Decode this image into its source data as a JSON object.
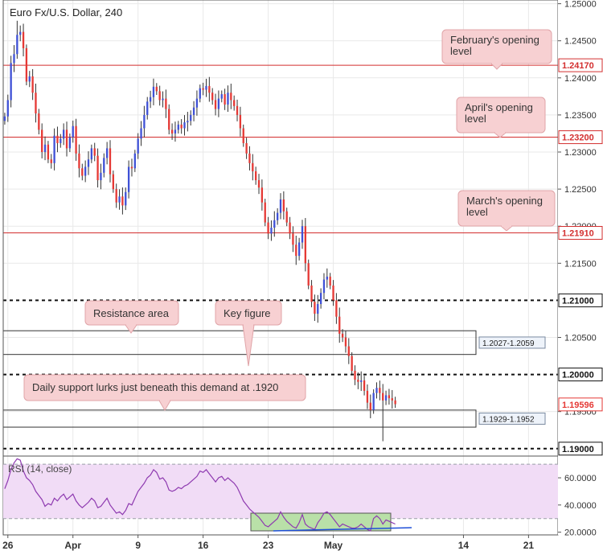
{
  "chart_data": {
    "type": "candlestick",
    "title": "Euro Fx/U.S. Dollar, 240",
    "price_axis": {
      "range": [
        1.189,
        1.2505
      ],
      "ticks": [
        "1.25000",
        "1.24500",
        "1.24000",
        "1.23500",
        "1.23000",
        "1.22500",
        "1.22000",
        "1.21500",
        "1.20500",
        "1.19500"
      ]
    },
    "time_axis": {
      "ticks": [
        {
          "label": "26",
          "bar": 1
        },
        {
          "label": "Apr",
          "bar": 22
        },
        {
          "label": "9",
          "bar": 43
        },
        {
          "label": "16",
          "bar": 64
        },
        {
          "label": "23",
          "bar": 85
        },
        {
          "label": "May",
          "bar": 106
        },
        {
          "label": "14",
          "bar": 148
        },
        {
          "label": "21",
          "bar": 169
        }
      ],
      "total_bars": 179
    },
    "closes": [
      1.2348,
      1.237,
      1.242,
      1.2432,
      1.2458,
      1.2462,
      1.244,
      1.2395,
      1.2402,
      1.238,
      1.2352,
      1.233,
      1.23,
      1.231,
      1.229,
      1.2285,
      1.2322,
      1.2312,
      1.2318,
      1.233,
      1.2305,
      1.232,
      1.2335,
      1.2298,
      1.2278,
      1.2268,
      1.228,
      1.229,
      1.2305,
      1.2295,
      1.2262,
      1.2272,
      1.2292,
      1.2305,
      1.227,
      1.225,
      1.2232,
      1.224,
      1.2228,
      1.2246,
      1.228,
      1.2278,
      1.2298,
      1.2318,
      1.2332,
      1.235,
      1.2368,
      1.2374,
      1.2388,
      1.2382,
      1.237,
      1.2372,
      1.2358,
      1.233,
      1.2325,
      1.233,
      1.2337,
      1.2332,
      1.234,
      1.2342,
      1.235,
      1.236,
      1.2372,
      1.2386,
      1.2384,
      1.2389,
      1.238,
      1.237,
      1.2358,
      1.2372,
      1.2378,
      1.2364,
      1.238,
      1.237,
      1.2362,
      1.235,
      1.2332,
      1.2312,
      1.2298,
      1.2285,
      1.2274,
      1.2262,
      1.2252,
      1.2232,
      1.2205,
      1.219,
      1.2198,
      1.2208,
      1.2218,
      1.2236,
      1.222,
      1.2205,
      1.219,
      1.2175,
      1.216,
      1.2178,
      1.22,
      1.215,
      1.212,
      1.2098,
      1.2082,
      1.2095,
      1.211,
      1.2128,
      1.2132,
      1.212,
      1.21,
      1.2078,
      1.2055,
      1.205,
      1.2038,
      1.2025,
      1.2005,
      1.1993,
      1.199,
      1.1992,
      1.1978,
      1.1962,
      1.1952,
      1.1975,
      1.1982,
      1.1975,
      1.1965,
      1.1972,
      1.1968,
      1.1965,
      1.196
    ],
    "horizontal_levels": [
      {
        "price": 1.2417,
        "label": "1.24170",
        "style": "solid-red"
      },
      {
        "price": 1.232,
        "label": "1.23200",
        "style": "solid-red"
      },
      {
        "price": 1.2191,
        "label": "1.21910",
        "style": "solid-red"
      },
      {
        "price": 1.21,
        "label": "1.21000",
        "style": "dashed-black"
      },
      {
        "price": 1.2,
        "label": "1.20000",
        "style": "dashed-black"
      },
      {
        "price": 1.19,
        "label": "1.19000",
        "style": "dashed-black"
      }
    ],
    "current_price": {
      "price": 1.19596,
      "label": "1.19596",
      "color": "#e53935"
    },
    "zones": [
      {
        "top": 1.2059,
        "bottom": 1.2027,
        "label": "1.2027-1.2059"
      },
      {
        "top": 1.1952,
        "bottom": 1.1929,
        "label": "1.1929-1.1952"
      }
    ],
    "annotations": [
      {
        "text": "February's opening level",
        "target": "1.24170 level"
      },
      {
        "text": "April's opening level",
        "target": "1.23200 level"
      },
      {
        "text": "March's opening level",
        "target": "1.21910 level"
      },
      {
        "text": "Resistance area",
        "target": "1.2027-1.2059 zone"
      },
      {
        "text": "Key figure",
        "target": "1.20000 level"
      },
      {
        "text": "Daily support lurks just beneath this demand at .1920",
        "target": "1.1929-1.1952 zone"
      }
    ],
    "rsi": {
      "title": "RSI (14, close)",
      "range": [
        18,
        76
      ],
      "ticks": [
        "60.0000",
        "40.0000",
        "20.0000"
      ],
      "overbought": 70,
      "oversold": 30,
      "values": [
        52,
        58,
        66,
        71,
        74,
        73,
        65,
        60,
        58,
        55,
        50,
        47,
        44,
        39,
        41,
        40,
        45,
        43,
        46,
        48,
        44,
        46,
        48,
        43,
        40,
        38,
        40,
        42,
        45,
        43,
        38,
        39,
        42,
        45,
        40,
        37,
        34,
        35,
        33,
        36,
        41,
        40,
        45,
        50,
        53,
        56,
        60,
        62,
        66,
        64,
        59,
        60,
        57,
        51,
        50,
        51,
        53,
        52,
        54,
        55,
        57,
        59,
        61,
        65,
        64,
        66,
        63,
        60,
        57,
        60,
        61,
        58,
        60,
        58,
        56,
        53,
        48,
        43,
        40,
        37,
        35,
        33,
        31,
        28,
        25,
        24,
        26,
        28,
        30,
        35,
        31,
        28,
        26,
        24,
        23,
        27,
        33,
        26,
        24,
        23,
        22,
        27,
        30,
        34,
        35,
        33,
        30,
        27,
        24,
        26,
        25,
        24,
        23,
        23,
        24,
        26,
        24,
        22,
        21,
        30,
        32,
        30,
        26,
        29,
        28,
        27,
        26
      ],
      "highlight_label": "bullish divergence box"
    },
    "grid": true,
    "colors": {
      "up": "#3f51d6",
      "down": "#e53935",
      "level": "#d32f2f",
      "rsi": "#8e3ab0",
      "rsi_band": "#f1dcf6",
      "highlight": "#b9e0a8"
    }
  }
}
